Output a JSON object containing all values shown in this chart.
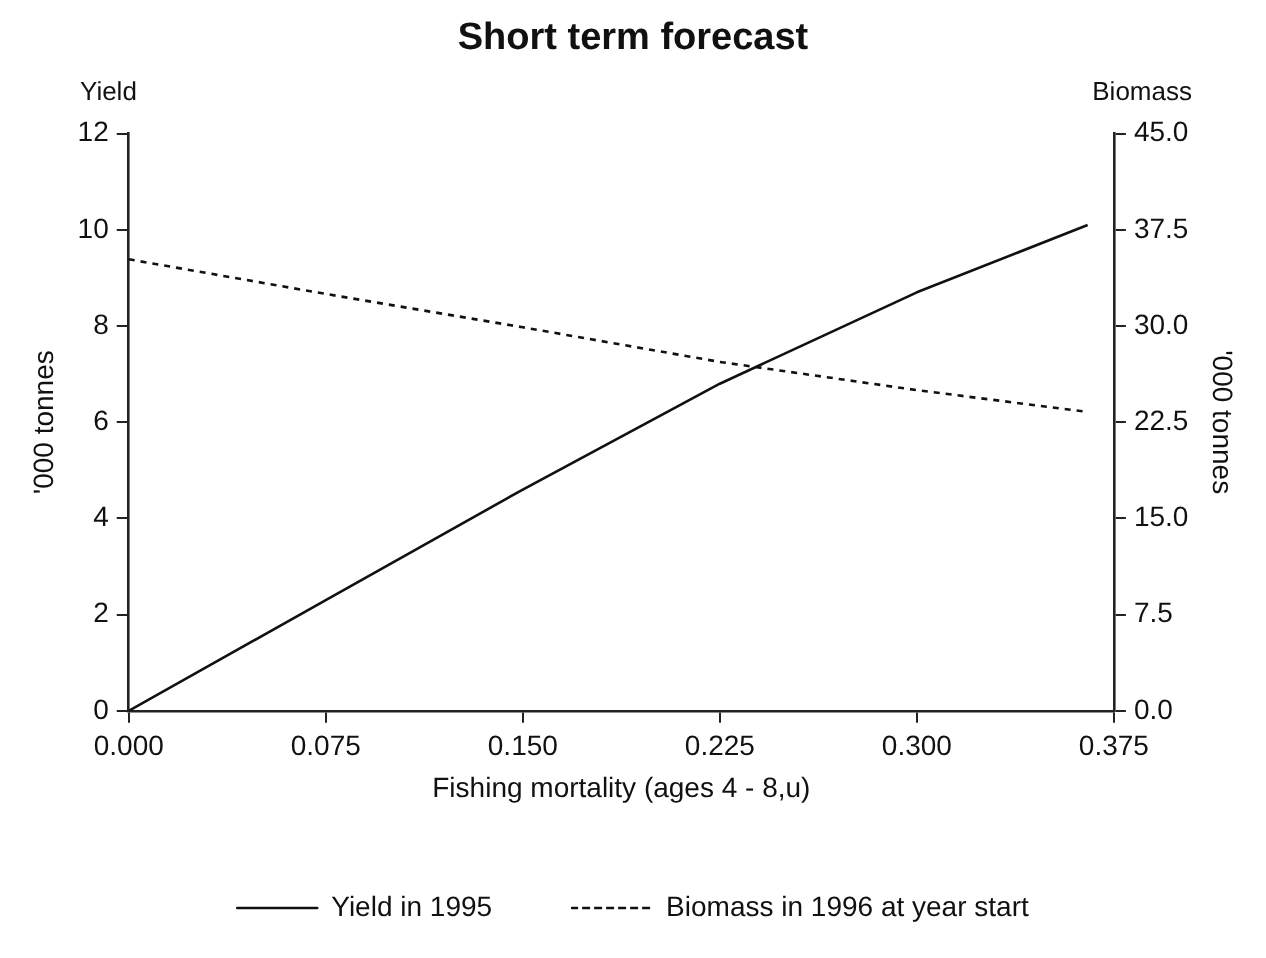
{
  "chart_data": {
    "type": "line",
    "title": "Short term forecast",
    "xlabel": "Fishing mortality (ages 4 - 8,u)",
    "ylabel": "'000 tonnes",
    "y2label": "'000 tonnes",
    "annotations": [
      "Yield",
      "Biomass"
    ],
    "x": [
      0,
      0.075,
      0.15,
      0.225,
      0.3,
      0.365
    ],
    "series": [
      {
        "name": "Yield in 1995",
        "color": "#111111",
        "values": [
          0,
          2.3,
          4.6,
          6.8,
          8.7,
          10.1
        ],
        "line_style": "solid"
      },
      {
        "name": "Biomass in 1996 at year start",
        "color": "#111111",
        "values": [
          35.2,
          32.5,
          29.9,
          27.2,
          25.0,
          23.3
        ],
        "axis": "y2",
        "line_style": "dashed"
      }
    ],
    "xlim": [
      0,
      0.375
    ],
    "xticks": [
      {
        "value": 0,
        "label": "0.000"
      },
      0.075,
      {
        "value": 0.15,
        "label": "0.150"
      },
      0.225,
      {
        "value": 0.3,
        "label": "0.300"
      },
      0.375
    ],
    "ylim": [
      0,
      12
    ],
    "yticks": [
      0,
      2,
      4,
      6,
      8,
      10,
      12
    ],
    "y2lim": [
      0,
      45
    ],
    "y2ticks": [
      {
        "value": 0,
        "label": "0.0"
      },
      7.5,
      {
        "value": 15,
        "label": "15.0"
      },
      22.5,
      {
        "value": 30,
        "label": "30.0"
      },
      37.5,
      {
        "value": 45,
        "label": "45.0"
      }
    ],
    "grid": false,
    "legend": "bottom",
    "marker": "none"
  }
}
